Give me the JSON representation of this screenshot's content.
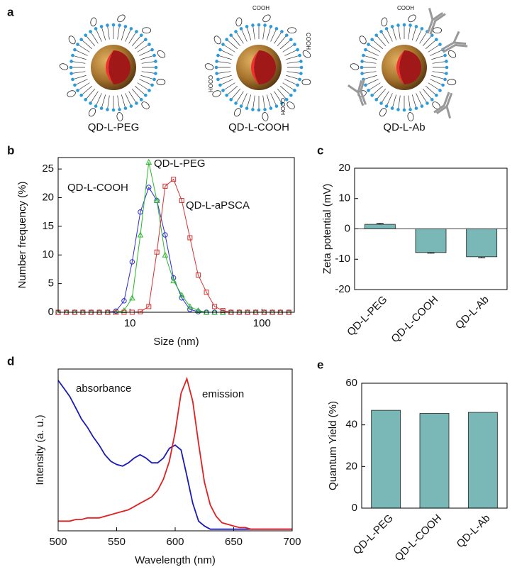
{
  "schematic": {
    "panel_label": "a",
    "items": [
      {
        "label": "QD-L-PEG"
      },
      {
        "label": "QD-L-COOH",
        "groups": [
          "COOH",
          "COOH",
          "COOH",
          "COOH"
        ]
      },
      {
        "label": "QD-L-Ab",
        "groups": [
          "COOH"
        ]
      }
    ]
  },
  "chart_data": [
    {
      "type": "line",
      "panel_label": "b",
      "x_label": "Size (nm)",
      "y_label": "Number frequency (%)",
      "xscale": "log",
      "xlim": [
        2.86,
        176
      ],
      "xticks": [
        10,
        100
      ],
      "ylim": [
        0,
        27
      ],
      "yticks": [
        0,
        5,
        10,
        15,
        20,
        25
      ],
      "x": [
        2.86,
        3.3,
        3.82,
        4.4,
        5.08,
        5.87,
        6.78,
        7.83,
        9.03,
        10.4,
        12.0,
        13.9,
        16.0,
        18.5,
        21.4,
        24.7,
        28.5,
        32.9,
        38.0,
        43.8,
        50.6,
        58.4,
        67.4,
        77.8,
        89.8,
        104,
        120,
        138,
        160
      ],
      "series": [
        {
          "name": "QD-L-COOH",
          "color": "#2b2bd6",
          "marker": "circle",
          "values": [
            0,
            0,
            0,
            0,
            0,
            0,
            0,
            0.2,
            2,
            8.8,
            17.5,
            21.8,
            19.5,
            13.5,
            6,
            2.5,
            0.5,
            0.1,
            0,
            0,
            0,
            0,
            0,
            0,
            0,
            0,
            0,
            0,
            0
          ]
        },
        {
          "name": "QD-L-PEG",
          "color": "#2cb82c",
          "marker": "triangle",
          "values": [
            0,
            0,
            0,
            0,
            0,
            0,
            0,
            0,
            0.3,
            2.5,
            13.5,
            26.2,
            19.5,
            10,
            5.5,
            3,
            1,
            0.3,
            0,
            0,
            0,
            0,
            0,
            0,
            0,
            0,
            0,
            0,
            0
          ]
        },
        {
          "name": "QD-L-aPSCA",
          "color": "#d83030",
          "marker": "square",
          "values": [
            0,
            0,
            0,
            0,
            0,
            0,
            0,
            0,
            0,
            0,
            0.1,
            1,
            10.5,
            22,
            23.2,
            19.5,
            13,
            6.5,
            3.5,
            1,
            0.3,
            0,
            0,
            0,
            0,
            0,
            0,
            0,
            0
          ]
        }
      ]
    },
    {
      "type": "bar",
      "panel_label": "c",
      "y_label": "Zeta potential (mV)",
      "categories": [
        "QD-L-PEG",
        "QD-L-COOH",
        "QD-L-Ab"
      ],
      "values": [
        1.5,
        -7.8,
        -9.2
      ],
      "errors": [
        0.3,
        0.2,
        0.3
      ],
      "color": "#7ab8b7",
      "ylim": [
        -20,
        20
      ],
      "yticks": [
        -20,
        -10,
        0,
        10,
        20
      ]
    },
    {
      "type": "line",
      "panel_label": "d",
      "x_label": "Wavelength (nm)",
      "y_label": "Intensity (a. u.)",
      "xlim": [
        500,
        700
      ],
      "xticks": [
        500,
        550,
        600,
        650,
        700
      ],
      "ylim": [
        0,
        1
      ],
      "x": [
        500,
        505,
        510,
        515,
        520,
        525,
        530,
        535,
        540,
        545,
        550,
        555,
        560,
        565,
        570,
        575,
        580,
        585,
        590,
        595,
        600,
        605,
        610,
        615,
        620,
        625,
        630,
        635,
        640,
        645,
        650,
        655,
        660,
        665,
        670,
        675,
        680,
        685,
        690,
        695,
        700
      ],
      "series": [
        {
          "name": "absorbance",
          "color": "#1a1ab8",
          "values": [
            0.93,
            0.88,
            0.83,
            0.76,
            0.69,
            0.64,
            0.58,
            0.53,
            0.47,
            0.43,
            0.41,
            0.4,
            0.42,
            0.45,
            0.47,
            0.45,
            0.42,
            0.42,
            0.45,
            0.51,
            0.53,
            0.5,
            0.34,
            0.17,
            0.06,
            0.03,
            0.01,
            0.01,
            0.01,
            0.01,
            0.01,
            0.01,
            0.01,
            0.01,
            0.01,
            0.01,
            0.01,
            0.01,
            0.01,
            0.01,
            0.01
          ]
        },
        {
          "name": "emission",
          "color": "#e02020",
          "values": [
            0.06,
            0.06,
            0.06,
            0.07,
            0.07,
            0.08,
            0.08,
            0.08,
            0.09,
            0.1,
            0.11,
            0.12,
            0.13,
            0.15,
            0.17,
            0.19,
            0.21,
            0.25,
            0.32,
            0.43,
            0.61,
            0.85,
            0.94,
            0.8,
            0.54,
            0.3,
            0.16,
            0.09,
            0.05,
            0.04,
            0.03,
            0.02,
            0.02,
            0.01,
            0.01,
            0.01,
            0.01,
            0.01,
            0.01,
            0.01,
            0.01
          ]
        }
      ]
    },
    {
      "type": "bar",
      "panel_label": "e",
      "y_label": "Quantum Yield (%)",
      "categories": [
        "QD-L-PEG",
        "QD-L-COOH",
        "QD-L-Ab"
      ],
      "values": [
        47,
        45.5,
        46
      ],
      "color": "#7ab8b7",
      "ylim": [
        0,
        60
      ],
      "yticks": [
        0,
        20,
        40,
        60
      ]
    }
  ]
}
